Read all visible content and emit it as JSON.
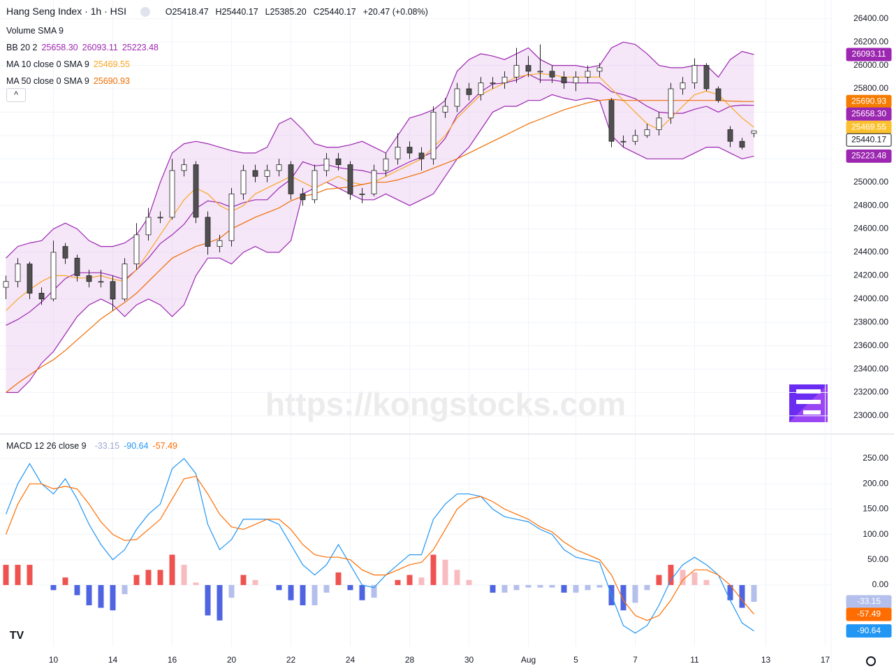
{
  "header": {
    "title": "Hang Seng Index · 1h · HSI",
    "open": "O25418.47",
    "high": "H25440.17",
    "low": "L25385.20",
    "close": "C25440.17",
    "change": "+20.47 (+0.08%)"
  },
  "watermark": "https://kongstocks.com",
  "chart_data": [
    {
      "type": "candlestick",
      "xlim": [
        -0.5,
        69.5
      ],
      "xticks": [
        {
          "value": 4,
          "label": "10"
        },
        {
          "value": 9,
          "label": "14"
        },
        {
          "value": 14,
          "label": "16"
        },
        {
          "value": 19,
          "label": "20"
        },
        {
          "value": 24,
          "label": "22"
        },
        {
          "value": 29,
          "label": "24"
        },
        {
          "value": 34,
          "label": "28"
        },
        {
          "value": 39,
          "label": "30"
        },
        {
          "value": 44,
          "label": "Aug"
        },
        {
          "value": 48,
          "label": "5"
        },
        {
          "value": 53,
          "label": "7"
        },
        {
          "value": 58,
          "label": "11"
        },
        {
          "value": 64,
          "label": "13"
        },
        {
          "value": 69,
          "label": "17"
        }
      ],
      "ylim": [
        22850,
        26560
      ],
      "yticks": [
        {
          "value": 23000,
          "label": "23000.00"
        },
        {
          "value": 23200,
          "label": "23200.00"
        },
        {
          "value": 23400,
          "label": "23400.00"
        },
        {
          "value": 23600,
          "label": "23600.00"
        },
        {
          "value": 23800,
          "label": "23800.00"
        },
        {
          "value": 24000,
          "label": "24000.00"
        },
        {
          "value": 24200,
          "label": "24200.00"
        },
        {
          "value": 24400,
          "label": "24400.00"
        },
        {
          "value": 24600,
          "label": "24600.00"
        },
        {
          "value": 24800,
          "label": "24800.00"
        },
        {
          "value": 25000,
          "label": "25000.00"
        },
        {
          "value": 25200,
          "label": "25200.00"
        },
        {
          "value": 25400,
          "label": "25400.00"
        },
        {
          "value": 25600,
          "label": "25600.00"
        },
        {
          "value": 25800,
          "label": "25800.00"
        },
        {
          "value": 26000,
          "label": "26000.00"
        },
        {
          "value": 26200,
          "label": "26200.00"
        },
        {
          "value": 26400,
          "label": "26400.00"
        }
      ],
      "open": [
        24100,
        24150,
        24300,
        24050,
        24000,
        24450,
        24350,
        24200,
        24150,
        24150,
        24000,
        24300,
        24550,
        24700,
        24700,
        25100,
        25150,
        24700,
        24450,
        24500,
        24900,
        25100,
        25050,
        25100,
        25150,
        24900,
        24850,
        25100,
        25200,
        25150,
        24900,
        24900,
        25100,
        25200,
        25300,
        25250,
        25200,
        25600,
        25650,
        25800,
        25750,
        25850,
        25850,
        25900,
        26000,
        25950,
        25950,
        25900,
        25850,
        25900,
        25950,
        25700,
        25350,
        25350,
        25400,
        25450,
        25550,
        25800,
        25850,
        26000,
        25800,
        25450,
        25350,
        25418.47
      ],
      "high": [
        24200,
        24350,
        24320,
        24100,
        24500,
        24480,
        24380,
        24250,
        24250,
        24200,
        24350,
        24650,
        24780,
        24750,
        25200,
        25200,
        25180,
        24750,
        24550,
        24950,
        25150,
        25150,
        25150,
        25200,
        25180,
        24950,
        25150,
        25250,
        25250,
        25180,
        24950,
        25150,
        25250,
        25420,
        25350,
        25300,
        25650,
        25720,
        25850,
        25850,
        25900,
        25900,
        25950,
        26150,
        26080,
        26180,
        26000,
        25950,
        25950,
        26000,
        26020,
        25720,
        25400,
        25450,
        25500,
        25600,
        25850,
        25900,
        26060,
        26020,
        25820,
        25480,
        25380,
        25440.17
      ],
      "low": [
        24000,
        24100,
        24000,
        23950,
        23980,
        24300,
        24150,
        24100,
        24100,
        23900,
        23980,
        24250,
        24500,
        24650,
        24680,
        25050,
        24650,
        24380,
        24400,
        24450,
        24850,
        25000,
        25000,
        25050,
        24850,
        24800,
        24820,
        25050,
        25100,
        24850,
        24820,
        24880,
        25050,
        25150,
        25200,
        25100,
        25150,
        25550,
        25600,
        25700,
        25700,
        25800,
        25800,
        25850,
        25900,
        25850,
        25850,
        25800,
        25780,
        25850,
        25900,
        25300,
        25300,
        25320,
        25380,
        25400,
        25500,
        25750,
        25800,
        25780,
        25680,
        25300,
        25280,
        25385.2
      ],
      "close": [
        24150,
        24300,
        24050,
        24000,
        24400,
        24350,
        24200,
        24150,
        24150,
        24000,
        24300,
        24550,
        24700,
        24700,
        25100,
        25150,
        24700,
        24450,
        24500,
        24900,
        25100,
        25050,
        25100,
        25150,
        24900,
        24850,
        25100,
        25200,
        25150,
        24900,
        24900,
        25100,
        25200,
        25300,
        25250,
        25200,
        25600,
        25650,
        25800,
        25750,
        25850,
        25850,
        25900,
        26000,
        25950,
        25950,
        25900,
        25850,
        25900,
        25950,
        25980,
        25350,
        25350,
        25400,
        25450,
        25550,
        25800,
        25850,
        26000,
        25800,
        25700,
        25350,
        25300,
        25440.17
      ],
      "up_color": "#ffffff",
      "down_color": "#505050",
      "wick_color": "#222222",
      "band_fill": "#e8c8ef",
      "series": [
        {
          "color": "#9c27b0",
          "values": [
            24350,
            24450,
            24480,
            24500,
            24600,
            24650,
            24600,
            24500,
            24450,
            24450,
            24480,
            24550,
            24700,
            25000,
            25250,
            25330,
            25350,
            25330,
            25300,
            25270,
            25250,
            25250,
            25300,
            25500,
            25550,
            25450,
            25330,
            25300,
            25300,
            25320,
            25350,
            25300,
            25250,
            25400,
            25550,
            25580,
            25620,
            25700,
            25950,
            26050,
            26100,
            26080,
            26050,
            26100,
            26150,
            26050,
            26000,
            26000,
            26000,
            25980,
            26000,
            26150,
            26200,
            26180,
            26100,
            26000,
            25980,
            25980,
            26000,
            26000,
            25900,
            26050,
            26120,
            26093.11
          ]
        },
        {
          "color": "#9c27b0",
          "values": [
            23775,
            23825,
            23890,
            23975,
            24075,
            24175,
            24225,
            24225,
            24225,
            24200,
            24165,
            24250,
            24350,
            24475,
            24550,
            24640,
            24775,
            24840,
            24825,
            24785,
            24825,
            24850,
            24850,
            24950,
            25025,
            25175,
            25140,
            25150,
            25125,
            25110,
            25100,
            25075,
            25075,
            25125,
            25175,
            25215,
            25260,
            25375,
            25575,
            25675,
            25775,
            25840,
            25850,
            25875,
            25925,
            25875,
            25875,
            25860,
            25850,
            25850,
            25850,
            25775,
            25750,
            25715,
            25650,
            25600,
            25590,
            25590,
            25625,
            25650,
            25600,
            25650,
            25660,
            25658.3
          ]
        },
        {
          "color": "#9c27b0",
          "values": [
            23200,
            23200,
            23300,
            23450,
            23550,
            23700,
            23850,
            23950,
            24000,
            23950,
            23850,
            23950,
            24000,
            23950,
            23850,
            23950,
            24200,
            24350,
            24350,
            24300,
            24400,
            24450,
            24400,
            24400,
            24500,
            24900,
            24950,
            25000,
            24950,
            24900,
            24850,
            24850,
            24900,
            24850,
            24800,
            24850,
            24900,
            25050,
            25200,
            25300,
            25450,
            25600,
            25650,
            25650,
            25700,
            25700,
            25750,
            25720,
            25700,
            25720,
            25700,
            25400,
            25300,
            25250,
            25200,
            25200,
            25200,
            25200,
            25250,
            25300,
            25300,
            25250,
            25200,
            25223.48
          ]
        },
        {
          "color": "#f9a825",
          "values": [
            23900,
            24000,
            24080,
            24150,
            24200,
            24200,
            24180,
            24180,
            24200,
            24170,
            24150,
            24250,
            24400,
            24550,
            24700,
            24850,
            24950,
            24900,
            24800,
            24750,
            24800,
            24900,
            24950,
            25000,
            25050,
            25000,
            24950,
            25000,
            25050,
            25000,
            24980,
            25000,
            25050,
            25100,
            25150,
            25200,
            25300,
            25400,
            25550,
            25650,
            25750,
            25800,
            25850,
            25900,
            25920,
            25930,
            25920,
            25900,
            25900,
            25900,
            25900,
            25800,
            25700,
            25600,
            25500,
            25450,
            25550,
            25650,
            25750,
            25780,
            25750,
            25650,
            25550,
            25469.55
          ]
        },
        {
          "color": "#ef6c00",
          "values": [
            23200,
            23280,
            23350,
            23420,
            23480,
            23560,
            23650,
            23740,
            23830,
            23900,
            23970,
            24050,
            24150,
            24250,
            24350,
            24400,
            24450,
            24480,
            24520,
            24600,
            24650,
            24700,
            24740,
            24780,
            24840,
            24880,
            24900,
            24940,
            24950,
            24960,
            24980,
            25000,
            25000,
            25020,
            25050,
            25080,
            25120,
            25160,
            25200,
            25250,
            25300,
            25350,
            25400,
            25450,
            25500,
            25540,
            25580,
            25620,
            25650,
            25680,
            25700,
            25710,
            25700,
            25700,
            25700,
            25700,
            25700,
            25700,
            25700,
            25700,
            25700,
            25695,
            25692,
            25690.93
          ]
        }
      ],
      "indicators": [
        {
          "label": "Volume SMA 9"
        },
        {
          "label": "BB 20 2",
          "values": [
            "25658.30",
            "26093.11",
            "25223.48"
          ],
          "color": "#9c27b0"
        },
        {
          "label": "MA 10 close 0 SMA 9",
          "values": [
            "25469.55"
          ],
          "color": "#f9a825"
        },
        {
          "label": "MA 50 close 0 SMA 9",
          "values": [
            "25690.93"
          ],
          "color": "#ef6c00"
        }
      ],
      "price_tags": [
        {
          "value": 26093.11,
          "label": "26093.11",
          "color": "#9c27b0"
        },
        {
          "value": 25690.93,
          "label": "25690.93",
          "color": "#f57c00"
        },
        {
          "value": 25658.3,
          "label": "25658.30",
          "color": "#9c27b0"
        },
        {
          "value": 25469.55,
          "label": "25469.55",
          "color": "#fbc02d"
        },
        {
          "value": 25440.17,
          "label": "25440.17",
          "color": "#ffffff"
        },
        {
          "value": 25223.48,
          "label": "25223.48",
          "color": "#9c27b0"
        }
      ]
    },
    {
      "type": "macd",
      "ylim": [
        -121.5,
        297
      ],
      "yticks": [
        {
          "value": 0,
          "label": "0.00"
        },
        {
          "value": 50,
          "label": "50.00"
        },
        {
          "value": 100,
          "label": "100.00"
        },
        {
          "value": 150,
          "label": "150.00"
        },
        {
          "value": 200,
          "label": "200.00"
        },
        {
          "value": 250,
          "label": "250.00"
        }
      ],
      "series": [
        {
          "color": "#2196f3",
          "values": [
            140,
            200,
            240,
            200,
            180,
            210,
            170,
            120,
            80,
            50,
            70,
            110,
            140,
            160,
            230,
            250,
            220,
            120,
            70,
            90,
            130,
            130,
            130,
            120,
            80,
            40,
            20,
            40,
            80,
            40,
            0,
            -5,
            20,
            40,
            60,
            60,
            130,
            160,
            180,
            180,
            175,
            150,
            135,
            130,
            125,
            110,
            100,
            70,
            55,
            50,
            45,
            -20,
            -80,
            -95,
            -80,
            -40,
            10,
            40,
            55,
            40,
            20,
            -30,
            -75,
            -90.64
          ]
        },
        {
          "color": "#ff6d00",
          "values": [
            100,
            160,
            200,
            200,
            190,
            195,
            190,
            160,
            125,
            100,
            88,
            90,
            110,
            130,
            170,
            210,
            215,
            180,
            140,
            115,
            110,
            120,
            130,
            130,
            110,
            80,
            60,
            55,
            55,
            50,
            30,
            20,
            20,
            30,
            40,
            45,
            70,
            110,
            150,
            170,
            175,
            165,
            150,
            140,
            130,
            115,
            105,
            85,
            70,
            60,
            50,
            20,
            -30,
            -60,
            -70,
            -60,
            -30,
            10,
            30,
            30,
            20,
            0,
            -30,
            -57.49
          ]
        }
      ],
      "histogram": [
        40,
        40,
        40,
        0,
        -10,
        15,
        -20,
        -40,
        -45,
        -50,
        -18,
        20,
        30,
        30,
        60,
        40,
        5,
        -60,
        -70,
        -25,
        20,
        10,
        0,
        -10,
        -30,
        -40,
        -40,
        -15,
        25,
        -10,
        -30,
        -25,
        0,
        10,
        20,
        15,
        60,
        50,
        30,
        10,
        0,
        -15,
        -15,
        -10,
        -5,
        -5,
        -5,
        -15,
        -15,
        -10,
        -5,
        -40,
        -50,
        -35,
        -10,
        20,
        40,
        30,
        25,
        10,
        0,
        -30,
        -45,
        -33.15
      ],
      "histogram_colors": {
        "up_rising": "#ef5350",
        "up_falling": "#f8bcc0",
        "down_falling": "#4f64e0",
        "down_rising": "#b4bfec"
      },
      "indicator": {
        "label": "MACD 12 26 close 9",
        "values": [
          "-33.15",
          "-90.64",
          "-57.49"
        ],
        "colors": [
          "#9fa8d6",
          "#2196f3",
          "#ff6d00"
        ]
      },
      "value_tags": [
        {
          "value": -33.15,
          "label": "-33.15",
          "color": "#b4bfec"
        },
        {
          "value": -57.49,
          "label": "-57.49",
          "color": "#ff6d00"
        },
        {
          "value": -90.64,
          "label": "-90.64",
          "color": "#2196f3"
        }
      ]
    }
  ]
}
